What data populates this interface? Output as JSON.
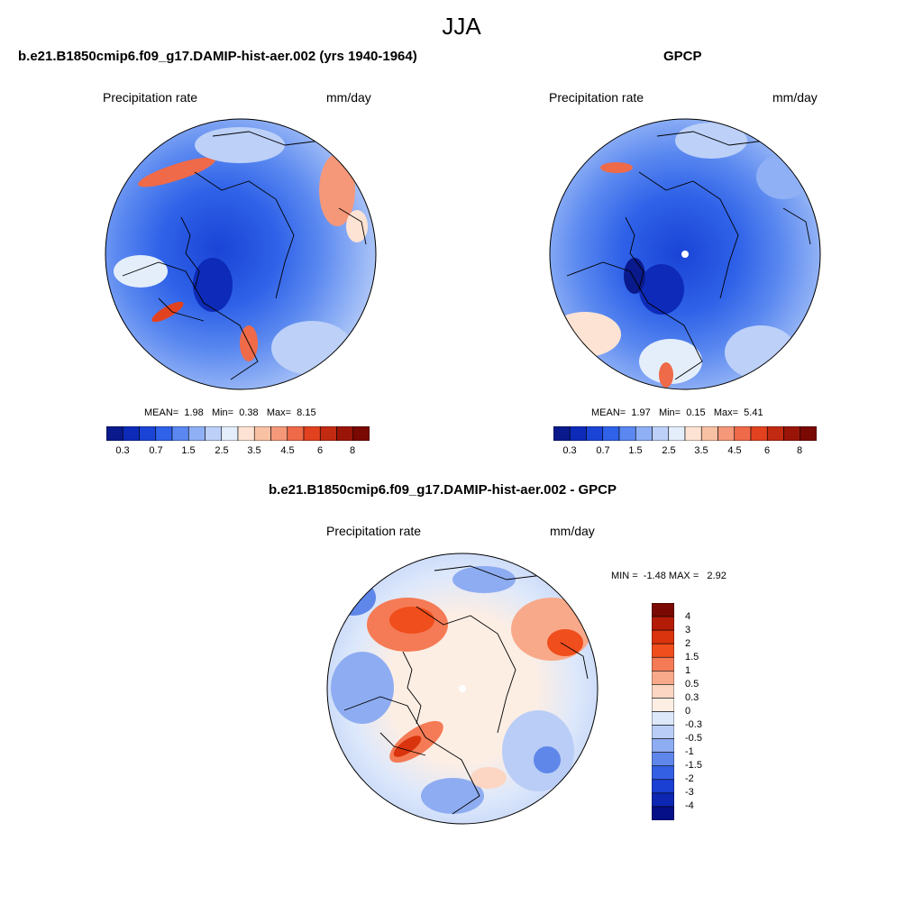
{
  "figure_title": "JJA",
  "panels": [
    {
      "title": "b.e21.B1850cmip6.f09_g17.DAMIP-hist-aer.002 (yrs 1940-1964)",
      "left_label": "Precipitation rate",
      "right_label": "mm/day",
      "stats": {
        "label_mean": "MEAN=",
        "mean": "1.98",
        "label_min": "Min=",
        "min": "0.38",
        "label_max": "Max=",
        "max": "8.15"
      },
      "colorbar_ticks": [
        "0.3",
        "0.7",
        "1.5",
        "2.5",
        "3.5",
        "4.5",
        "6",
        "8"
      ]
    },
    {
      "title": "GPCP",
      "left_label": "Precipitation rate",
      "right_label": "mm/day",
      "stats": {
        "label_mean": "MEAN=",
        "mean": "1.97",
        "label_min": "Min=",
        "min": "0.15",
        "label_max": "Max=",
        "max": "5.41"
      },
      "colorbar_ticks": [
        "0.3",
        "0.7",
        "1.5",
        "2.5",
        "3.5",
        "4.5",
        "6",
        "8"
      ]
    },
    {
      "title": "b.e21.B1850cmip6.f09_g17.DAMIP-hist-aer.002 - GPCP",
      "left_label": "Precipitation rate",
      "right_label": "mm/day",
      "stats": {
        "label_min": "MIN =",
        "min": "-1.48",
        "label_max": "MAX =",
        "max": "2.92"
      },
      "colorbar_ticks": [
        "4",
        "3",
        "2",
        "1.5",
        "1",
        "0.5",
        "0.3",
        "0",
        "-0.3",
        "-0.5",
        "-1",
        "-1.5",
        "-2",
        "-3",
        "-4"
      ]
    }
  ],
  "colors": {
    "abs_scale": [
      "#0a1a8c",
      "#0d2bb8",
      "#1a44d6",
      "#2f62e8",
      "#5a88f0",
      "#8fb0f5",
      "#bcd0f8",
      "#e4eefb",
      "#fde3d3",
      "#f9c1a4",
      "#f5987a",
      "#ef6a49",
      "#e2421f",
      "#c32a12",
      "#9a1508",
      "#7a0903"
    ],
    "diff_scale": [
      "#7a0903",
      "#b51c07",
      "#d9340d",
      "#f04e1d",
      "#f47b55",
      "#f8a98a",
      "#fcd6c2",
      "#fdeee4",
      "#dde8fb",
      "#b9cdf6",
      "#8eacf1",
      "#5f87ea",
      "#3460e3",
      "#1a3fd3",
      "#0d27b3",
      "#050f88"
    ]
  }
}
